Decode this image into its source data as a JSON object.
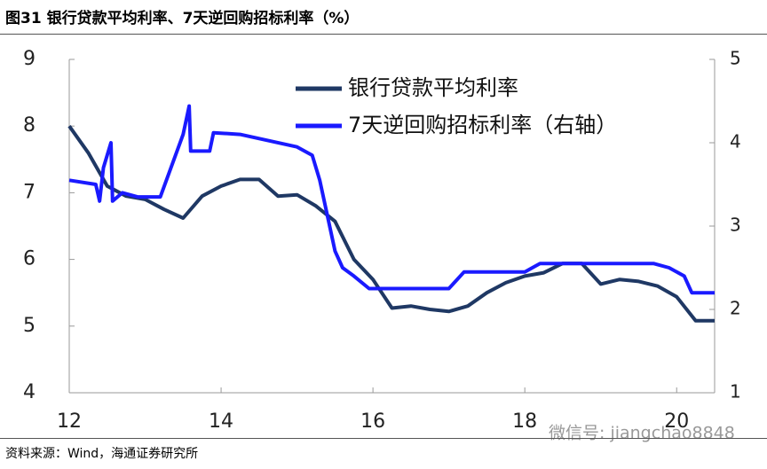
{
  "title": "图31 银行贷款平均利率、7天逆回购招标利率（%）",
  "source": "资料来源：Wind，海通证券研究所",
  "watermark": "微信号: jiangchao8848",
  "chart_data": {
    "type": "line",
    "xlim": [
      12,
      20.5
    ],
    "xticks": [
      12,
      14,
      16,
      18,
      20
    ],
    "ylim": [
      4,
      9
    ],
    "yticks": [
      4,
      5,
      6,
      7,
      8,
      9
    ],
    "y2lim": [
      1,
      5
    ],
    "y2ticks": [
      1,
      2,
      3,
      4,
      5
    ],
    "series": [
      {
        "name": "银行贷款平均利率",
        "color": "#1f3864",
        "x": [
          12.0,
          12.25,
          12.5,
          12.75,
          13.0,
          13.25,
          13.5,
          13.75,
          14.0,
          14.25,
          14.5,
          14.75,
          15.0,
          15.25,
          15.5,
          15.75,
          16.0,
          16.25,
          16.5,
          16.75,
          17.0,
          17.25,
          17.5,
          17.75,
          18.0,
          18.25,
          18.5,
          18.75,
          19.0,
          19.25,
          19.5,
          19.75,
          20.0,
          20.25,
          20.5
        ],
        "values": [
          8.0,
          7.6,
          7.1,
          6.95,
          6.9,
          6.75,
          6.62,
          6.95,
          7.1,
          7.2,
          7.2,
          6.95,
          6.97,
          6.8,
          6.57,
          6.0,
          5.7,
          5.27,
          5.3,
          5.25,
          5.22,
          5.3,
          5.5,
          5.65,
          5.75,
          5.8,
          5.94,
          5.94,
          5.63,
          5.7,
          5.67,
          5.6,
          5.44,
          5.08,
          5.08
        ]
      },
      {
        "name": "7天逆回购招标利率（右轴）",
        "color": "#1a1aff",
        "axis": "y2",
        "x": [
          12.0,
          12.35,
          12.4,
          12.45,
          12.55,
          12.57,
          12.7,
          12.9,
          13.2,
          13.5,
          13.58,
          13.6,
          13.85,
          13.9,
          14.25,
          15.0,
          15.2,
          15.3,
          15.5,
          15.6,
          15.75,
          15.95,
          17.0,
          17.1,
          17.2,
          18.0,
          18.1,
          18.2,
          19.5,
          19.7,
          19.9,
          20.1,
          20.2,
          20.5
        ],
        "values": [
          3.55,
          3.5,
          3.3,
          3.7,
          4.0,
          3.3,
          3.4,
          3.35,
          3.35,
          4.1,
          4.44,
          3.9,
          3.9,
          4.12,
          4.1,
          3.95,
          3.85,
          3.55,
          2.7,
          2.5,
          2.4,
          2.25,
          2.25,
          2.35,
          2.45,
          2.45,
          2.5,
          2.55,
          2.55,
          2.55,
          2.5,
          2.4,
          2.2,
          2.2
        ]
      }
    ]
  }
}
